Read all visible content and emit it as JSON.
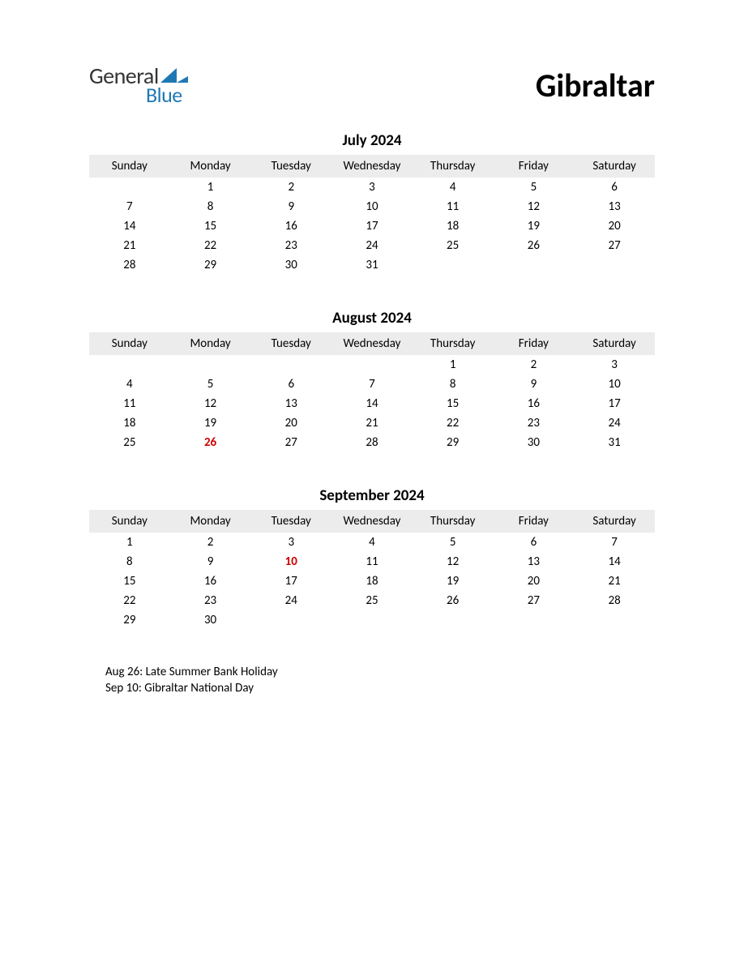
{
  "logo": {
    "line1": "General",
    "line2": "Blue",
    "text_color": "#353535",
    "blue_color": "#1f78b4",
    "flag_color": "#1f78b4"
  },
  "title": "Gibraltar",
  "header_bg": "#ececec",
  "holiday_color": "#cc0000",
  "day_headers": [
    "Sunday",
    "Monday",
    "Tuesday",
    "Wednesday",
    "Thursday",
    "Friday",
    "Saturday"
  ],
  "months": [
    {
      "title": "July 2024",
      "weeks": [
        [
          "",
          "1",
          "2",
          "3",
          "4",
          "5",
          "6"
        ],
        [
          "7",
          "8",
          "9",
          "10",
          "11",
          "12",
          "13"
        ],
        [
          "14",
          "15",
          "16",
          "17",
          "18",
          "19",
          "20"
        ],
        [
          "21",
          "22",
          "23",
          "24",
          "25",
          "26",
          "27"
        ],
        [
          "28",
          "29",
          "30",
          "31",
          "",
          "",
          ""
        ]
      ],
      "holidays": []
    },
    {
      "title": "August 2024",
      "weeks": [
        [
          "",
          "",
          "",
          "",
          "1",
          "2",
          "3"
        ],
        [
          "4",
          "5",
          "6",
          "7",
          "8",
          "9",
          "10"
        ],
        [
          "11",
          "12",
          "13",
          "14",
          "15",
          "16",
          "17"
        ],
        [
          "18",
          "19",
          "20",
          "21",
          "22",
          "23",
          "24"
        ],
        [
          "25",
          "26",
          "27",
          "28",
          "29",
          "30",
          "31"
        ]
      ],
      "holidays": [
        "26"
      ]
    },
    {
      "title": "September 2024",
      "weeks": [
        [
          "1",
          "2",
          "3",
          "4",
          "5",
          "6",
          "7"
        ],
        [
          "8",
          "9",
          "10",
          "11",
          "12",
          "13",
          "14"
        ],
        [
          "15",
          "16",
          "17",
          "18",
          "19",
          "20",
          "21"
        ],
        [
          "22",
          "23",
          "24",
          "25",
          "26",
          "27",
          "28"
        ],
        [
          "29",
          "30",
          "",
          "",
          "",
          "",
          ""
        ]
      ],
      "holidays": [
        "10"
      ]
    }
  ],
  "holiday_notes": [
    "Aug 26: Late Summer Bank Holiday",
    "Sep 10: Gibraltar National Day"
  ]
}
